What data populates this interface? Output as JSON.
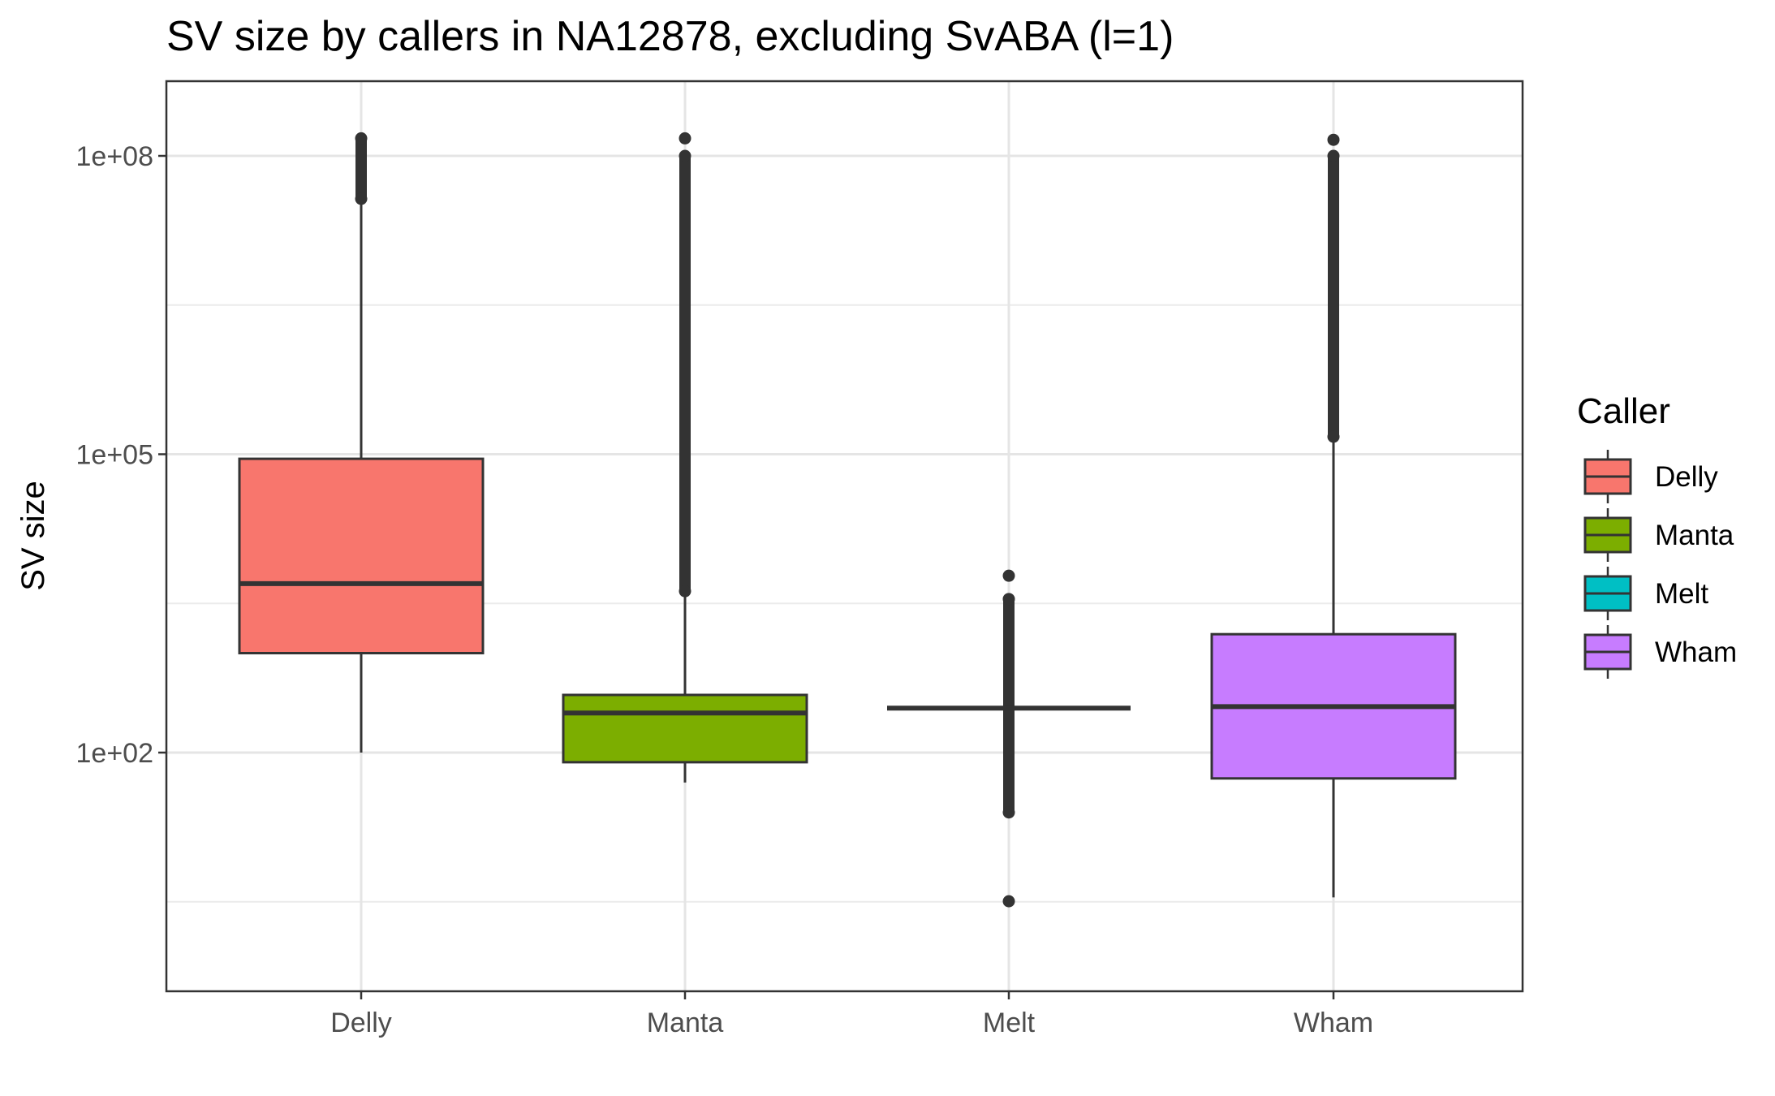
{
  "chart_data": {
    "type": "boxplot",
    "title": "SV size by callers in NA12878, excluding SvABA (l=1)",
    "xlabel": "",
    "ylabel": "SV size",
    "y_scale": "log10",
    "ylim": [
      1,
      400000000
    ],
    "y_ticks": [
      {
        "value": 100,
        "label": "1e+02"
      },
      {
        "value": 100000,
        "label": "1e+05"
      },
      {
        "value": 100000000,
        "label": "1e+08"
      }
    ],
    "y_minor_gridlines": [
      3.16,
      3162,
      3162000
    ],
    "categories": [
      "Delly",
      "Manta",
      "Melt",
      "Wham"
    ],
    "grid": true,
    "legend": {
      "title": "Caller",
      "position": "right",
      "entries": [
        "Delly",
        "Manta",
        "Melt",
        "Wham"
      ]
    },
    "colors": {
      "Delly": "#F8766D",
      "Manta": "#7CAE00",
      "Melt": "#00BFC4",
      "Wham": "#C77CFF"
    },
    "boxes": [
      {
        "name": "Delly",
        "whisker_low": 100,
        "q1": 1000,
        "median": 5000,
        "q3": 90000,
        "whisker_high": 37000000,
        "outliers_range": [
          37000000,
          150000000
        ],
        "outlier_dense": true
      },
      {
        "name": "Manta",
        "whisker_low": 50,
        "q1": 80,
        "median": 250,
        "q3": 380,
        "whisker_high": 4200,
        "outliers_range": [
          4200,
          100000000
        ],
        "outliers_isolated": [
          150000000
        ],
        "outlier_dense": true
      },
      {
        "name": "Melt",
        "whisker_low": 280,
        "q1": 280,
        "median": 280,
        "q3": 280,
        "whisker_high": 280,
        "outliers_range": [
          25,
          3500
        ],
        "outliers_isolated": [
          6000,
          3.2
        ],
        "outlier_dense": true
      },
      {
        "name": "Wham",
        "whisker_low": 3.5,
        "q1": 55,
        "median": 290,
        "q3": 1550,
        "whisker_high": 150000,
        "outliers_range": [
          150000,
          100000000
        ],
        "outliers_isolated": [
          145000000
        ],
        "outlier_dense": true
      }
    ]
  }
}
